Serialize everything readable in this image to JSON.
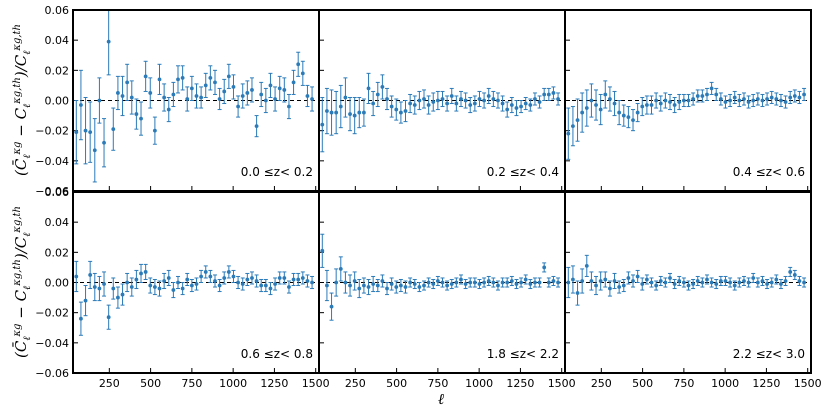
{
  "chart_data": {
    "type": "scatter",
    "subtype": "errorbar-grid",
    "xlabel": "ℓ",
    "ylabel": "(C̄ℓ^κg − Cℓ^κg,th)/Cℓ^κg,th",
    "xlim": [
      30,
      1520
    ],
    "ylim": [
      -0.06,
      0.06
    ],
    "xticks": [
      250,
      500,
      750,
      1000,
      1250,
      1500
    ],
    "yticks": [
      -0.06,
      -0.04,
      -0.02,
      0.0,
      0.02,
      0.04,
      0.06
    ],
    "ytick_labels": [
      "−0.06",
      "−0.04",
      "−0.02",
      "0.00",
      "0.02",
      "0.04",
      "0.06"
    ],
    "reference_line": 0,
    "marker_color": "#2b7bb9",
    "grid": false,
    "x": [
      50,
      78,
      106,
      134,
      162,
      190,
      218,
      246,
      274,
      302,
      330,
      358,
      386,
      414,
      442,
      470,
      498,
      526,
      554,
      582,
      610,
      638,
      666,
      694,
      722,
      750,
      778,
      806,
      834,
      862,
      890,
      918,
      946,
      974,
      1002,
      1030,
      1058,
      1086,
      1114,
      1142,
      1170,
      1198,
      1226,
      1254,
      1282,
      1310,
      1338,
      1366,
      1394,
      1422,
      1450,
      1478
    ],
    "panels": [
      {
        "label": "0.0  ≤z<  0.2",
        "y": [
          -0.021,
          -0.003,
          -0.02,
          -0.021,
          -0.033,
          0.0,
          -0.028,
          0.039,
          -0.019,
          0.005,
          0.003,
          0.012,
          0.002,
          -0.009,
          -0.012,
          0.016,
          0.005,
          -0.02,
          0.014,
          0.002,
          -0.006,
          0.004,
          0.014,
          0.015,
          0.001,
          0.008,
          0.003,
          0.002,
          0.01,
          0.015,
          0.012,
          0.001,
          0.006,
          0.016,
          0.009,
          -0.004,
          0.003,
          0.005,
          0.007,
          -0.017,
          0.004,
          0.0,
          0.01,
          0.001,
          0.008,
          0.007,
          -0.004,
          0.012,
          0.024,
          0.018,
          0.003,
          0.001
        ],
        "err": [
          0.021,
          0.023,
          0.022,
          0.02,
          0.021,
          0.015,
          0.016,
          0.022,
          0.014,
          0.011,
          0.013,
          0.012,
          0.011,
          0.01,
          0.011,
          0.01,
          0.01,
          0.009,
          0.01,
          0.009,
          0.008,
          0.008,
          0.009,
          0.008,
          0.008,
          0.008,
          0.008,
          0.007,
          0.008,
          0.008,
          0.008,
          0.007,
          0.008,
          0.008,
          0.008,
          0.007,
          0.008,
          0.008,
          0.008,
          0.007,
          0.008,
          0.008,
          0.008,
          0.008,
          0.008,
          0.008,
          0.008,
          0.008,
          0.008,
          0.008,
          0.007,
          0.008
        ]
      },
      {
        "label": "0.2  ≤z<  0.4",
        "y": [
          -0.016,
          -0.007,
          -0.008,
          -0.008,
          -0.004,
          0.002,
          -0.009,
          -0.01,
          -0.008,
          -0.008,
          0.008,
          -0.002,
          0.004,
          0.009,
          0.001,
          -0.004,
          -0.006,
          -0.008,
          -0.007,
          -0.002,
          -0.003,
          0.0,
          0.001,
          -0.003,
          -0.001,
          0.0,
          0.001,
          -0.002,
          0.003,
          -0.002,
          0.001,
          0.0,
          -0.003,
          -0.002,
          0.001,
          0.0,
          0.003,
          0.001,
          0.0,
          -0.002,
          -0.006,
          -0.003,
          -0.005,
          -0.004,
          -0.002,
          -0.003,
          0.001,
          -0.001,
          0.004,
          0.004,
          0.005,
          0.001
        ],
        "err": [
          0.018,
          0.015,
          0.015,
          0.014,
          0.014,
          0.013,
          0.011,
          0.012,
          0.01,
          0.009,
          0.01,
          0.008,
          0.008,
          0.008,
          0.007,
          0.007,
          0.007,
          0.007,
          0.007,
          0.006,
          0.006,
          0.006,
          0.006,
          0.006,
          0.006,
          0.006,
          0.005,
          0.005,
          0.005,
          0.005,
          0.005,
          0.005,
          0.005,
          0.005,
          0.005,
          0.005,
          0.005,
          0.005,
          0.005,
          0.005,
          0.005,
          0.005,
          0.005,
          0.004,
          0.004,
          0.004,
          0.004,
          0.004,
          0.004,
          0.004,
          0.004,
          0.004
        ]
      },
      {
        "label": "0.4  ≤z<  0.6",
        "y": [
          -0.022,
          -0.017,
          -0.013,
          -0.008,
          -0.005,
          0.0,
          -0.003,
          -0.006,
          0.004,
          0.001,
          -0.002,
          -0.008,
          -0.01,
          -0.011,
          -0.013,
          -0.008,
          -0.004,
          -0.003,
          -0.003,
          0.0,
          -0.002,
          0.0,
          -0.001,
          -0.003,
          -0.001,
          0.0,
          0.0,
          0.001,
          0.003,
          0.003,
          0.004,
          0.008,
          0.004,
          0.001,
          -0.001,
          0.0,
          0.002,
          0.0,
          0.001,
          -0.001,
          0.0,
          0.001,
          0.0,
          0.001,
          0.002,
          0.001,
          0.0,
          -0.001,
          0.002,
          0.003,
          0.002,
          0.004
        ],
        "err": [
          0.017,
          0.013,
          0.014,
          0.013,
          0.012,
          0.011,
          0.01,
          0.01,
          0.009,
          0.008,
          0.008,
          0.008,
          0.007,
          0.007,
          0.007,
          0.006,
          0.006,
          0.006,
          0.006,
          0.005,
          0.005,
          0.005,
          0.005,
          0.005,
          0.005,
          0.004,
          0.004,
          0.004,
          0.004,
          0.004,
          0.004,
          0.004,
          0.004,
          0.004,
          0.004,
          0.004,
          0.004,
          0.004,
          0.004,
          0.004,
          0.004,
          0.004,
          0.004,
          0.004,
          0.004,
          0.004,
          0.004,
          0.004,
          0.004,
          0.004,
          0.004,
          0.004
        ]
      },
      {
        "label": "0.6  ≤z<  0.8",
        "y": [
          0.004,
          -0.024,
          -0.012,
          0.005,
          -0.003,
          -0.004,
          -0.001,
          -0.023,
          -0.004,
          -0.01,
          -0.008,
          0.0,
          -0.003,
          0.002,
          0.006,
          0.007,
          -0.002,
          -0.003,
          -0.004,
          0.001,
          0.003,
          -0.005,
          0.0,
          -0.004,
          0.002,
          -0.002,
          -0.001,
          0.004,
          0.007,
          0.004,
          0.001,
          -0.002,
          0.003,
          0.007,
          0.004,
          0.0,
          -0.001,
          0.002,
          0.003,
          0.001,
          -0.002,
          -0.002,
          -0.004,
          -0.001,
          0.003,
          0.003,
          -0.003,
          0.002,
          0.002,
          0.003,
          0.001,
          0.0
        ],
        "err": [
          0.01,
          0.011,
          0.01,
          0.009,
          0.009,
          0.008,
          0.008,
          0.008,
          0.007,
          0.007,
          0.007,
          0.006,
          0.006,
          0.006,
          0.006,
          0.005,
          0.005,
          0.005,
          0.005,
          0.005,
          0.005,
          0.005,
          0.004,
          0.004,
          0.004,
          0.004,
          0.004,
          0.004,
          0.004,
          0.004,
          0.004,
          0.004,
          0.004,
          0.004,
          0.004,
          0.004,
          0.004,
          0.004,
          0.004,
          0.004,
          0.004,
          0.004,
          0.004,
          0.004,
          0.004,
          0.004,
          0.004,
          0.004,
          0.004,
          0.004,
          0.004,
          0.004
        ]
      },
      {
        "label": "1.8  ≤z<  2.2",
        "y": [
          0.021,
          -0.002,
          -0.016,
          0.0,
          0.009,
          0.0,
          -0.002,
          0.001,
          -0.004,
          -0.002,
          -0.003,
          -0.001,
          -0.002,
          0.001,
          -0.004,
          -0.001,
          -0.003,
          -0.002,
          -0.003,
          0.0,
          -0.001,
          -0.003,
          -0.002,
          0.0,
          -0.001,
          0.001,
          0.0,
          -0.002,
          -0.001,
          0.0,
          0.002,
          -0.001,
          0.0,
          0.0,
          -0.001,
          0.0,
          0.001,
          0.0,
          -0.002,
          0.0,
          0.0,
          0.001,
          -0.001,
          0.0,
          0.002,
          -0.001,
          0.0,
          0.0,
          0.01,
          0.0,
          0.001,
          0.0
        ],
        "err": [
          0.011,
          0.01,
          0.009,
          0.009,
          0.008,
          0.007,
          0.007,
          0.006,
          0.006,
          0.005,
          0.005,
          0.005,
          0.004,
          0.004,
          0.004,
          0.004,
          0.004,
          0.004,
          0.004,
          0.003,
          0.003,
          0.003,
          0.003,
          0.003,
          0.003,
          0.003,
          0.003,
          0.003,
          0.003,
          0.003,
          0.003,
          0.003,
          0.003,
          0.003,
          0.003,
          0.003,
          0.003,
          0.003,
          0.003,
          0.003,
          0.003,
          0.003,
          0.003,
          0.003,
          0.003,
          0.003,
          0.003,
          0.003,
          0.003,
          0.003,
          0.003,
          0.003
        ]
      },
      {
        "label": "2.2  ≤z<  3.0",
        "y": [
          0.0,
          0.002,
          -0.007,
          0.001,
          0.011,
          0.001,
          -0.002,
          0.001,
          0.002,
          -0.004,
          0.001,
          -0.003,
          -0.002,
          0.003,
          0.001,
          0.004,
          -0.001,
          0.002,
          0.0,
          -0.002,
          0.001,
          0.0,
          0.003,
          -0.001,
          0.001,
          0.0,
          -0.002,
          -0.001,
          0.001,
          0.0,
          0.002,
          0.0,
          -0.001,
          0.001,
          0.001,
          0.0,
          -0.002,
          0.0,
          0.001,
          0.0,
          0.003,
          0.0,
          0.001,
          -0.001,
          0.0,
          0.002,
          -0.001,
          0.001,
          0.007,
          0.005,
          0.001,
          0.0
        ],
        "err": [
          0.01,
          0.009,
          0.008,
          0.008,
          0.007,
          0.006,
          0.006,
          0.006,
          0.005,
          0.005,
          0.005,
          0.004,
          0.004,
          0.004,
          0.004,
          0.004,
          0.004,
          0.003,
          0.003,
          0.003,
          0.003,
          0.003,
          0.003,
          0.003,
          0.003,
          0.003,
          0.003,
          0.003,
          0.003,
          0.003,
          0.003,
          0.003,
          0.003,
          0.003,
          0.003,
          0.003,
          0.003,
          0.003,
          0.003,
          0.003,
          0.003,
          0.003,
          0.003,
          0.003,
          0.003,
          0.003,
          0.003,
          0.003,
          0.003,
          0.003,
          0.003,
          0.003
        ]
      }
    ]
  }
}
